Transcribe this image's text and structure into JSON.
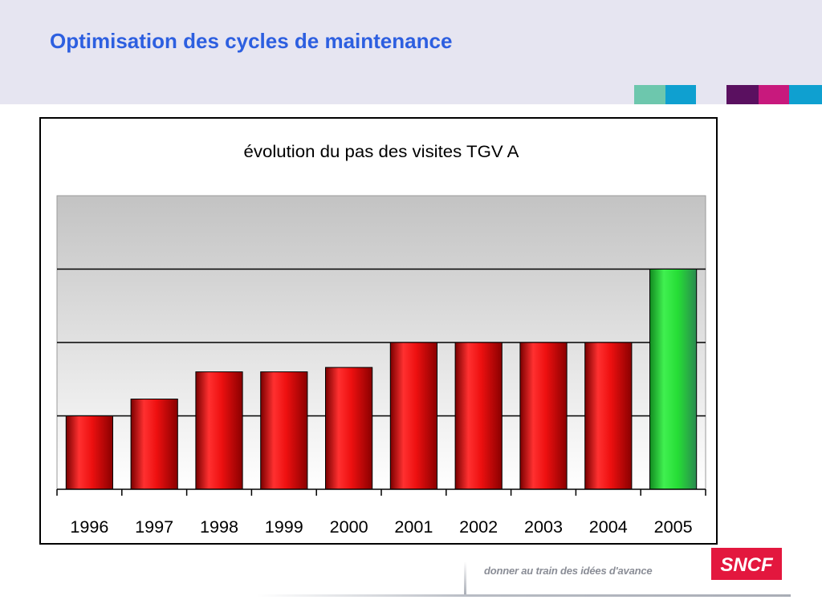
{
  "slide": {
    "title": "Optimisation des cycles de maintenance",
    "tagline": "donner au train des idées d'avance",
    "logo_text": "SNCF"
  },
  "colors": {
    "title": "#2d5fe0",
    "header_band": "#e6e5f1",
    "swatches": [
      "#6dc7ad",
      "#0fa0d0",
      "#5a1060",
      "#c8197d",
      "#0fa0d0"
    ],
    "bar_red": "#e01818",
    "bar_green": "#22dd33",
    "logo_red": "#e3173e"
  },
  "chart_data": {
    "type": "bar",
    "title": "évolution du pas des visites TGV A",
    "categories": [
      "1996",
      "1997",
      "1998",
      "1999",
      "2000",
      "2001",
      "2002",
      "2003",
      "2004",
      "2005"
    ],
    "values": [
      1.0,
      1.23,
      1.6,
      1.6,
      1.66,
      2.0,
      2.0,
      2.0,
      2.0,
      3.0
    ],
    "highlight_index": 9,
    "ylim": [
      0,
      4
    ],
    "gridlines": [
      1,
      2,
      3
    ],
    "y_tick_labels_shown": false,
    "grid": true,
    "legend": "none"
  }
}
